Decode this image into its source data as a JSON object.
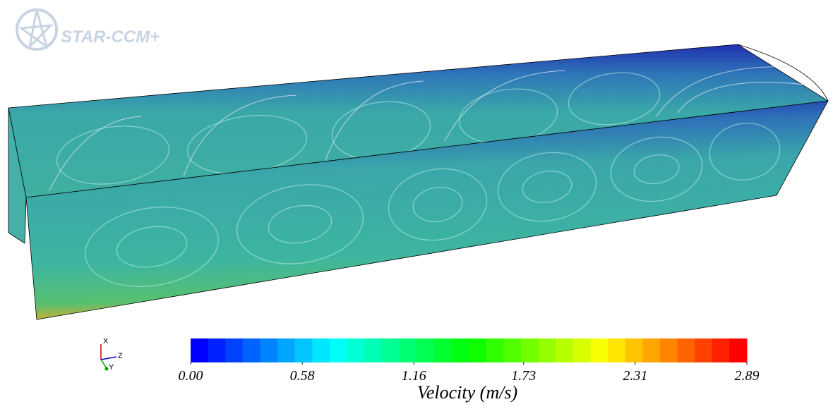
{
  "logo": "STAR-CCM+",
  "axes": {
    "x": "X",
    "y": "Y",
    "z": "Z"
  },
  "colorbar": {
    "title": "Velocity (m/s)",
    "range": [
      0,
      2.89
    ],
    "segments": 32,
    "colors": [
      "#0000ff",
      "#00ffff",
      "#00ff00",
      "#ffff00",
      "#ff0000"
    ],
    "ticks": [
      {
        "value": 0,
        "label": "0.00"
      },
      {
        "value": 0.58,
        "label": "0.58"
      },
      {
        "value": 1.16,
        "label": "1.16"
      },
      {
        "value": 1.73,
        "label": "1.73"
      },
      {
        "value": 2.31,
        "label": "2.31"
      },
      {
        "value": 2.89,
        "label": "2.89"
      }
    ]
  }
}
